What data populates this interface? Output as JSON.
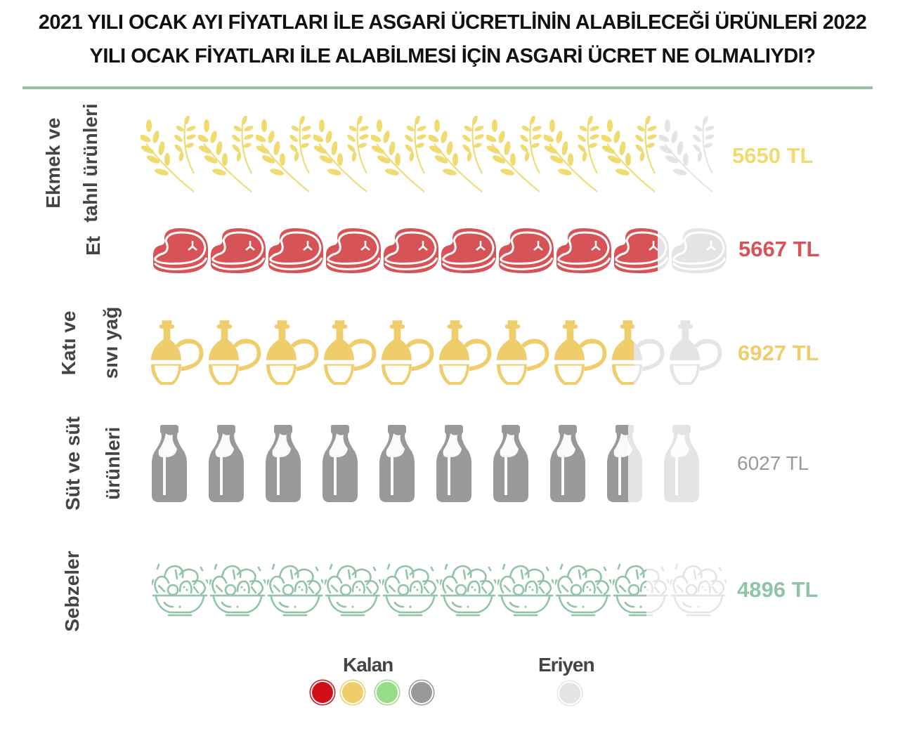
{
  "title": {
    "line1": "2021 YILI OCAK AYI FİYATLARI İLE ASGARİ ÜCRETLİNİN ALABİLECEĞİ ÜRÜNLERİ 2022",
    "line2": "YILI OCAK FİYATLARI İLE ALABİLMESİ İÇİN ASGARİ ÜCRET NE OLMALIYDI?"
  },
  "chart_data": {
    "type": "bar",
    "subtype": "pictogram",
    "title": "2021 YILI OCAK AYI FİYATLARI İLE ASGARİ ÜCRETLİNİN ALABİLECEĞİ ÜRÜNLERİ 2022 YILI OCAK FİYATLARI İLE ALABİLMESİ İÇİN ASGARİ ÜCRET NE OLMALIYDI?",
    "icons_total": 10,
    "series": [
      {
        "name": "Ekmek ve tahıl ürünleri",
        "label_lines": [
          "Ekmek ve",
          "tahıl ürünleri"
        ],
        "icon": "wheat-icon",
        "filled_icons": 9.0,
        "value_label": "5650 TL",
        "color": "#f0dc6e"
      },
      {
        "name": "Et",
        "label_lines": [
          "Et"
        ],
        "icon": "steak-icon",
        "filled_icons": 8.8,
        "value_label": "5667 TL",
        "color": "#d65358"
      },
      {
        "name": "Katı ve sıvı yağ",
        "label_lines": [
          "Katı ve",
          "sıvı yağ"
        ],
        "icon": "oil-jug-icon",
        "filled_icons": 8.4,
        "value_label": "6927 TL",
        "color": "#f0cd6b"
      },
      {
        "name": "Süt ve süt ürünleri",
        "label_lines": [
          "Süt ve süt",
          "ürünleri"
        ],
        "icon": "milk-bottle-icon",
        "filled_icons": 8.6,
        "value_label": "6027 TL",
        "color": "#999999"
      },
      {
        "name": "Sebzeler",
        "label_lines": [
          "Sebzeler"
        ],
        "icon": "salad-bowl-icon",
        "filled_icons": 8.6,
        "value_label": "4896 TL",
        "color": "#8fc5a5"
      }
    ],
    "empty_color": "#e4e4e4",
    "legend": {
      "kalan": {
        "label": "Kalan",
        "colors": [
          "#d10f17",
          "#f0cd6b",
          "#97dc87",
          "#999999"
        ]
      },
      "eriyen": {
        "label": "Eriyen",
        "colors": [
          "#e4e4e4"
        ]
      }
    }
  }
}
